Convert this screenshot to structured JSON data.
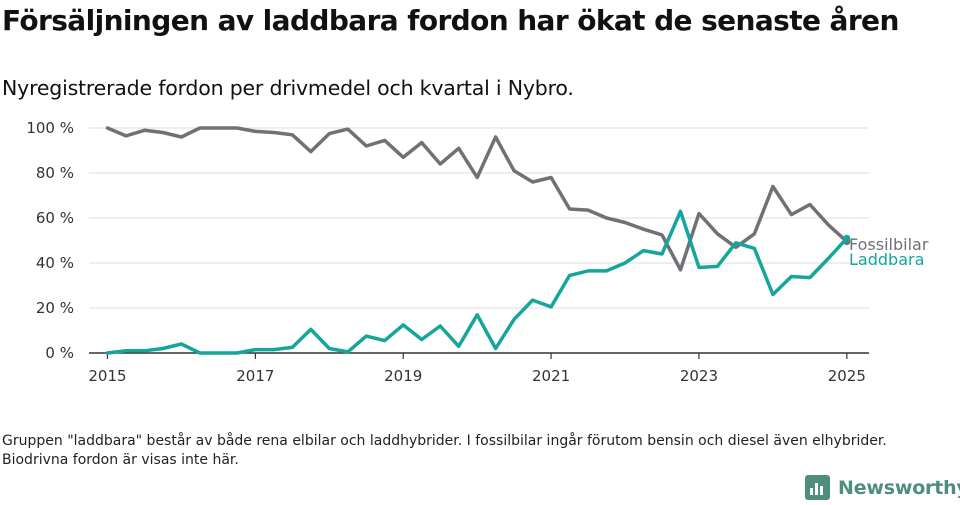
{
  "title": "Försäljningen av laddbara fordon har ökat de senaste åren",
  "subtitle": "Nyregistrerade fordon per drivmedel och kvartal i Nybro.",
  "footnote": "Gruppen \"laddbara\" består av både rena elbilar och laddhybrider. I fossilbilar ingår förutom bensin och diesel även elhybrider. Biodrivna fordon är visas inte här.",
  "brand": {
    "name": "Newsworthy",
    "color": "#4f8e7e"
  },
  "chart_data": {
    "type": "line",
    "ylim": [
      0,
      100
    ],
    "xlim": [
      2014.75,
      2025.3
    ],
    "y_ticks": [
      0,
      20,
      40,
      60,
      80,
      100
    ],
    "y_tick_labels": [
      "0 %",
      "20 %",
      "40 %",
      "60 %",
      "80 %",
      "100 %"
    ],
    "x_ticks": [
      2015,
      2017,
      2019,
      2021,
      2023,
      2025
    ],
    "x_tick_labels": [
      "2015",
      "2017",
      "2019",
      "2021",
      "2023",
      "2025"
    ],
    "grid": "horizontal",
    "series": [
      {
        "name": "Fossilbilar",
        "color": "#717076",
        "x": [
          2015.0,
          2015.25,
          2015.5,
          2015.75,
          2016.0,
          2016.25,
          2016.5,
          2016.75,
          2017.0,
          2017.25,
          2017.5,
          2017.75,
          2018.0,
          2018.25,
          2018.5,
          2018.75,
          2019.0,
          2019.25,
          2019.5,
          2019.75,
          2020.0,
          2020.25,
          2020.5,
          2020.75,
          2021.0,
          2021.25,
          2021.5,
          2021.75,
          2022.0,
          2022.25,
          2022.5,
          2022.75,
          2023.0,
          2023.25,
          2023.5,
          2023.75,
          2024.0,
          2024.25,
          2024.5,
          2024.75,
          2025.0
        ],
        "values": [
          100,
          96.5,
          99,
          98,
          96,
          100,
          100,
          100,
          98.5,
          98,
          97,
          89.5,
          97.5,
          99.5,
          92,
          94.5,
          87,
          93.5,
          84,
          91,
          78,
          96,
          81,
          76,
          78,
          64,
          63.5,
          60,
          58,
          55,
          52.5,
          37,
          62,
          53,
          47,
          53,
          74,
          61.5,
          66,
          57,
          49.5
        ]
      },
      {
        "name": "Laddbara",
        "color": "#14a69a",
        "x": [
          2015.0,
          2015.25,
          2015.5,
          2015.75,
          2016.0,
          2016.25,
          2016.5,
          2016.75,
          2017.0,
          2017.25,
          2017.5,
          2017.75,
          2018.0,
          2018.25,
          2018.5,
          2018.75,
          2019.0,
          2019.25,
          2019.5,
          2019.75,
          2020.0,
          2020.25,
          2020.5,
          2020.75,
          2021.0,
          2021.25,
          2021.5,
          2021.75,
          2022.0,
          2022.25,
          2022.5,
          2022.75,
          2023.0,
          2023.25,
          2023.5,
          2023.75,
          2024.0,
          2024.25,
          2024.5,
          2024.75,
          2025.0
        ],
        "values": [
          0,
          1,
          1,
          2,
          4,
          0,
          0,
          0,
          1.5,
          1.5,
          2.5,
          10.5,
          2,
          0.5,
          7.5,
          5.5,
          12.5,
          6,
          12,
          3,
          17,
          2,
          15,
          23.5,
          20.5,
          34.5,
          36.5,
          36.5,
          40,
          45.5,
          44,
          63,
          38,
          38.5,
          49,
          46.5,
          26,
          34,
          33.5,
          42,
          51
        ]
      }
    ]
  }
}
